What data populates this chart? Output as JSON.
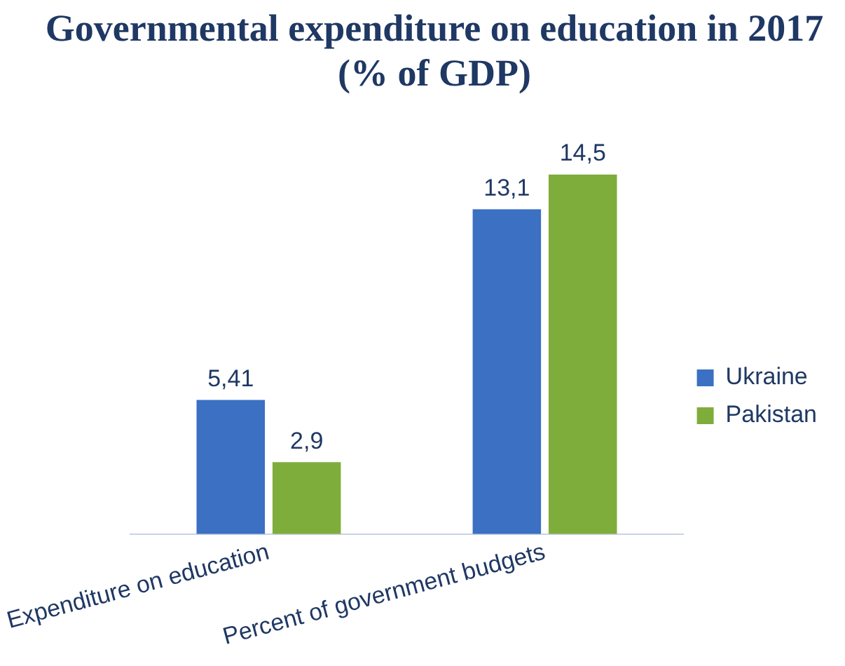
{
  "chart_data": {
    "type": "bar",
    "title": "Governmental expenditure on education in 2017 (% of GDP)",
    "categories": [
      "Expenditure on education",
      "Percent of government budgets"
    ],
    "series": [
      {
        "name": "Ukraine",
        "color": "#3b70c2",
        "values": [
          5.41,
          13.1
        ],
        "value_labels": [
          "5,41",
          "13,1"
        ]
      },
      {
        "name": "Pakistan",
        "color": "#7fad3c",
        "values": [
          2.9,
          14.5
        ],
        "value_labels": [
          "2,9",
          "14,5"
        ]
      }
    ],
    "legend": "right",
    "grid": false
  }
}
